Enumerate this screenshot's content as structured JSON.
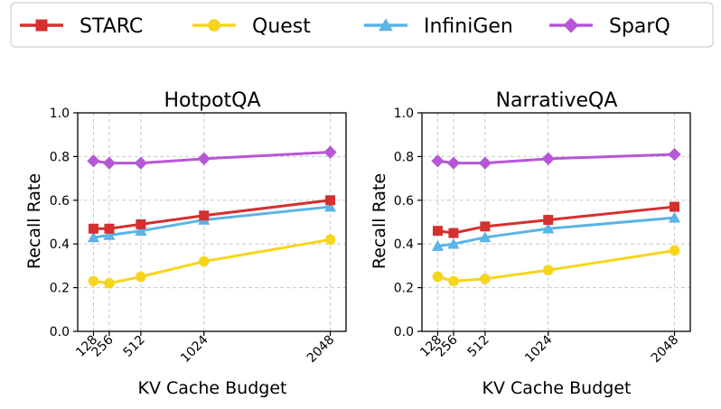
{
  "legend": {
    "entries": [
      {
        "name": "STARC",
        "color": "#d62f2f",
        "marker": "square"
      },
      {
        "name": "Quest",
        "color": "#f7d51c",
        "marker": "circle"
      },
      {
        "name": "InfiniGen",
        "color": "#5ab4e5",
        "marker": "triangle"
      },
      {
        "name": "SparQ",
        "color": "#b657d6",
        "marker": "diamond"
      }
    ]
  },
  "chart_data": [
    {
      "type": "line",
      "title": "HotpotQA",
      "xlabel": "KV Cache Budget",
      "ylabel": "Recall Rate",
      "x": [
        128,
        256,
        512,
        1024,
        2048
      ],
      "xticks": [
        "128",
        "256",
        "512",
        "1024",
        "2048"
      ],
      "yticks": [
        "0.0",
        "0.2",
        "0.4",
        "0.6",
        "0.8",
        "1.0"
      ],
      "ylim": [
        0,
        1
      ],
      "grid": true,
      "series": [
        {
          "name": "STARC",
          "values": [
            0.47,
            0.47,
            0.49,
            0.53,
            0.6
          ]
        },
        {
          "name": "Quest",
          "values": [
            0.23,
            0.22,
            0.25,
            0.32,
            0.42
          ]
        },
        {
          "name": "InfiniGen",
          "values": [
            0.43,
            0.44,
            0.46,
            0.51,
            0.57
          ]
        },
        {
          "name": "SparQ",
          "values": [
            0.78,
            0.77,
            0.77,
            0.79,
            0.82
          ]
        }
      ]
    },
    {
      "type": "line",
      "title": "NarrativeQA",
      "xlabel": "KV Cache Budget",
      "ylabel": "Recall Rate",
      "x": [
        128,
        256,
        512,
        1024,
        2048
      ],
      "xticks": [
        "128",
        "256",
        "512",
        "1024",
        "2048"
      ],
      "yticks": [
        "0.0",
        "0.2",
        "0.4",
        "0.6",
        "0.8",
        "1.0"
      ],
      "ylim": [
        0,
        1
      ],
      "grid": true,
      "series": [
        {
          "name": "STARC",
          "values": [
            0.46,
            0.45,
            0.48,
            0.51,
            0.57
          ]
        },
        {
          "name": "Quest",
          "values": [
            0.25,
            0.23,
            0.24,
            0.28,
            0.37
          ]
        },
        {
          "name": "InfiniGen",
          "values": [
            0.39,
            0.4,
            0.43,
            0.47,
            0.52
          ]
        },
        {
          "name": "SparQ",
          "values": [
            0.78,
            0.77,
            0.77,
            0.79,
            0.81
          ]
        }
      ]
    }
  ]
}
